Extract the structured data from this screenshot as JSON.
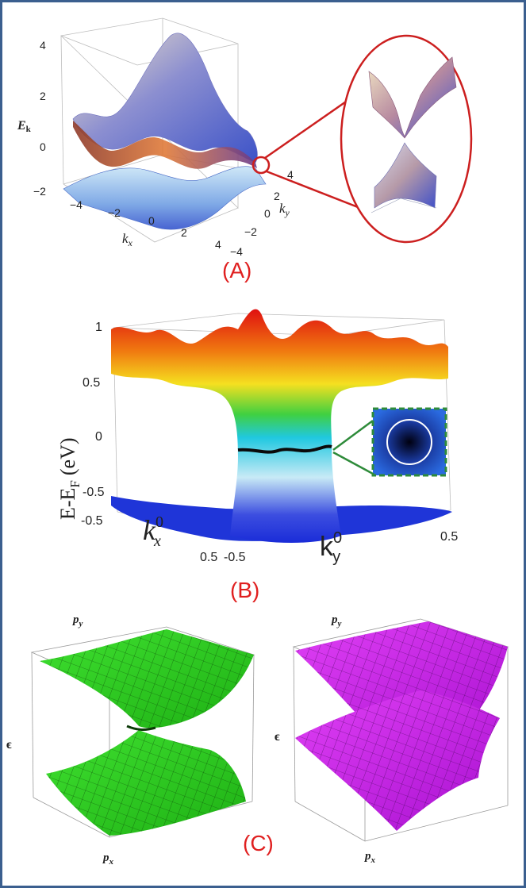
{
  "colors": {
    "border": "#3b5f8f",
    "panel_label": "#e02020",
    "zoom_circle": "#cc1f1f",
    "inset_frame": "#2e8b3a",
    "surface_green": "#2ad01a",
    "surface_magenta": "#d21cf0"
  },
  "panel_a": {
    "label": "(A)",
    "z_axis_label": "E",
    "z_axis_subscript": "k",
    "x_axis_label": "k",
    "x_axis_subscript": "x",
    "y_axis_label": "k",
    "y_axis_subscript": "y",
    "z_ticks": [
      "4",
      "2",
      "0",
      "−2"
    ],
    "x_ticks": [
      "−4",
      "−2",
      "0",
      "2",
      "4"
    ],
    "y_ticks": [
      "4",
      "2",
      "0",
      "−2",
      "−4"
    ]
  },
  "panel_b": {
    "label": "(B)",
    "z_axis_label": "E-E",
    "z_axis_subscript": "F",
    "z_axis_unit": "(eV)",
    "x_axis_label": "k",
    "x_axis_subscript": "x",
    "x_axis_superscript": "0",
    "y_axis_label": "k",
    "y_axis_subscript": "y",
    "y_axis_superscript": "0",
    "z_ticks": [
      "1",
      "0.5",
      "0",
      "-0.5",
      "-0.5"
    ],
    "x_ticks": [
      "0.5",
      "-0.5"
    ],
    "y_ticks": [
      "0.5"
    ]
  },
  "panel_c": {
    "label": "(C)",
    "left": {
      "py_label": "p",
      "py_sub": "y",
      "eps_label": "ϵ",
      "px_label": "p",
      "px_sub": "x"
    },
    "right": {
      "py_label": "p",
      "py_sub": "y",
      "eps_label": "ϵ",
      "px_label": "p",
      "px_sub": "x"
    }
  }
}
